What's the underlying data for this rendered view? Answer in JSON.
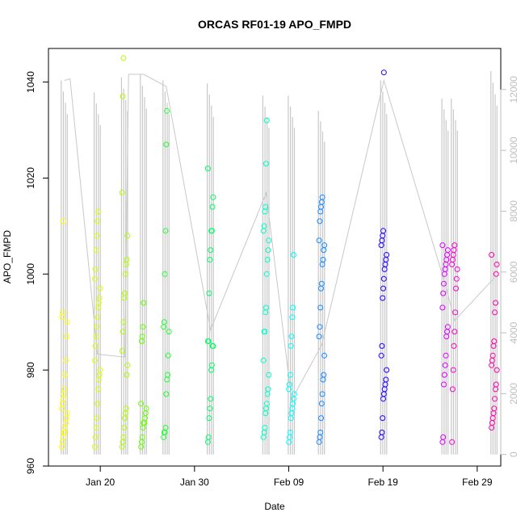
{
  "chart_data": {
    "type": "scatter",
    "title": "ORCAS RF01-19 APO_FMPD",
    "xlabel": "Date",
    "ylabel": "APO_FMPD",
    "x_ticks": [
      "Jan 20",
      "Jan 30",
      "Feb 09",
      "Feb 19",
      "Feb 29"
    ],
    "x_tick_days": [
      19,
      29,
      39,
      49,
      59
    ],
    "xlim": [
      13.5,
      61.5
    ],
    "ylim": [
      960,
      1047
    ],
    "y_ticks": [
      960,
      980,
      1000,
      1020,
      1040
    ],
    "right_axis": {
      "label": "",
      "color": "#bebebe",
      "ylim": [
        -380,
        13350
      ],
      "ticks": [
        0,
        2000,
        4000,
        6000,
        8000,
        10000,
        12000
      ]
    },
    "grid": false,
    "legend": "none",
    "altitude_track_color": "#c8c8c8",
    "flights": [
      {
        "day": 15.2,
        "color": "#ffff00",
        "alt_max": 12300,
        "values": [
          964,
          965,
          966,
          967,
          967,
          968,
          969,
          970,
          971,
          972,
          973,
          974,
          975,
          976,
          979,
          982,
          987,
          990,
          991,
          992,
          1011
        ]
      },
      {
        "day": 18.7,
        "color": "#dfff00",
        "alt_max": 11900,
        "values": [
          964,
          966,
          968,
          970,
          973,
          976,
          978,
          979,
          980,
          982,
          985,
          987,
          989,
          991,
          993,
          994,
          995,
          997,
          999,
          1001,
          1005,
          1008,
          1011,
          1013
        ]
      },
      {
        "day": 21.6,
        "color": "#b0ff00",
        "alt_max": 12400,
        "values": [
          964,
          965,
          966,
          968,
          970,
          971,
          972,
          979,
          981,
          984,
          988,
          990,
          995,
          996,
          1000,
          1002,
          1003,
          1008,
          1017,
          1037,
          1045
        ]
      },
      {
        "day": 23.6,
        "color": "#66ff00",
        "alt_max": 12500,
        "values": [
          964,
          965,
          966,
          968,
          969,
          969,
          970,
          971,
          972,
          973,
          986,
          987,
          989,
          994
        ]
      },
      {
        "day": 26.0,
        "color": "#22ff33",
        "alt_max": 12300,
        "values": [
          966,
          967,
          967,
          968,
          975,
          978,
          979,
          983,
          988,
          989,
          990,
          1000,
          1009,
          1027,
          1034
        ]
      },
      {
        "day": 30.7,
        "color": "#00ff66",
        "alt_max": 12200,
        "values": [
          965,
          966,
          970,
          972,
          974,
          980,
          981,
          985,
          985,
          986,
          986,
          996,
          1003,
          1005,
          1009,
          1009,
          1014,
          1016,
          1022
        ]
      },
      {
        "day": 36.6,
        "color": "#00ffc8",
        "alt_max": 11800,
        "values": [
          966,
          967,
          968,
          971,
          972,
          973,
          975,
          976,
          979,
          982,
          988,
          988,
          992,
          993,
          1000,
          1003,
          1005,
          1007,
          1009,
          1010,
          1013,
          1014,
          1023,
          1032
        ]
      },
      {
        "day": 39.3,
        "color": "#00ffff",
        "alt_max": 11800,
        "values": [
          965,
          966,
          967,
          970,
          971,
          972,
          973,
          974,
          975,
          976,
          977,
          979,
          985,
          987,
          991,
          993,
          1004
        ]
      },
      {
        "day": 42.5,
        "color": "#1a8cff",
        "alt_max": 11300,
        "values": [
          965,
          966,
          967,
          970,
          973,
          975,
          978,
          979,
          983,
          987,
          989,
          993,
          997,
          998,
          1002,
          1003,
          1005,
          1006,
          1007,
          1011,
          1013,
          1014,
          1015,
          1016
        ]
      },
      {
        "day": 49.1,
        "color": "#2200ff",
        "alt_max": 12300,
        "values": [
          966,
          967,
          970,
          974,
          975,
          976,
          977,
          978,
          980,
          983,
          985,
          995,
          997,
          999,
          1001,
          1002,
          1003,
          1004,
          1006,
          1007,
          1008,
          1009,
          1042
        ]
      },
      {
        "day": 55.6,
        "color": "#dd00ff",
        "alt_max": 11700,
        "values": [
          965,
          966,
          977,
          979,
          981,
          983,
          987,
          988,
          989,
          993,
          996,
          998,
          1000,
          1001,
          1002,
          1003,
          1004,
          1005,
          1006
        ]
      },
      {
        "day": 56.6,
        "color": "#ff00d4",
        "alt_max": 11700,
        "values": [
          965,
          976,
          980,
          985,
          988,
          992,
          997,
          999,
          1001,
          1002,
          1003,
          1004,
          1005,
          1006
        ]
      },
      {
        "day": 60.8,
        "color": "#ff00aa",
        "alt_max": 12600,
        "values": [
          968,
          969,
          970,
          971,
          972,
          974,
          976,
          977,
          980,
          981,
          982,
          983,
          985,
          986,
          992,
          994,
          1000,
          1002,
          1004
        ]
      }
    ],
    "transit_track": [
      [
        15.2,
        12300
      ],
      [
        15.8,
        12350
      ],
      [
        18.7,
        3300
      ],
      [
        21.6,
        3200
      ],
      [
        22.0,
        12500
      ],
      [
        23.6,
        12500
      ],
      [
        26.0,
        12100
      ],
      [
        30.7,
        4100
      ],
      [
        36.6,
        8600
      ],
      [
        39.3,
        1800
      ],
      [
        42.5,
        3600
      ],
      [
        49.1,
        12300
      ],
      [
        55.6,
        5600
      ],
      [
        56.6,
        4400
      ],
      [
        60.8,
        5800
      ]
    ]
  }
}
